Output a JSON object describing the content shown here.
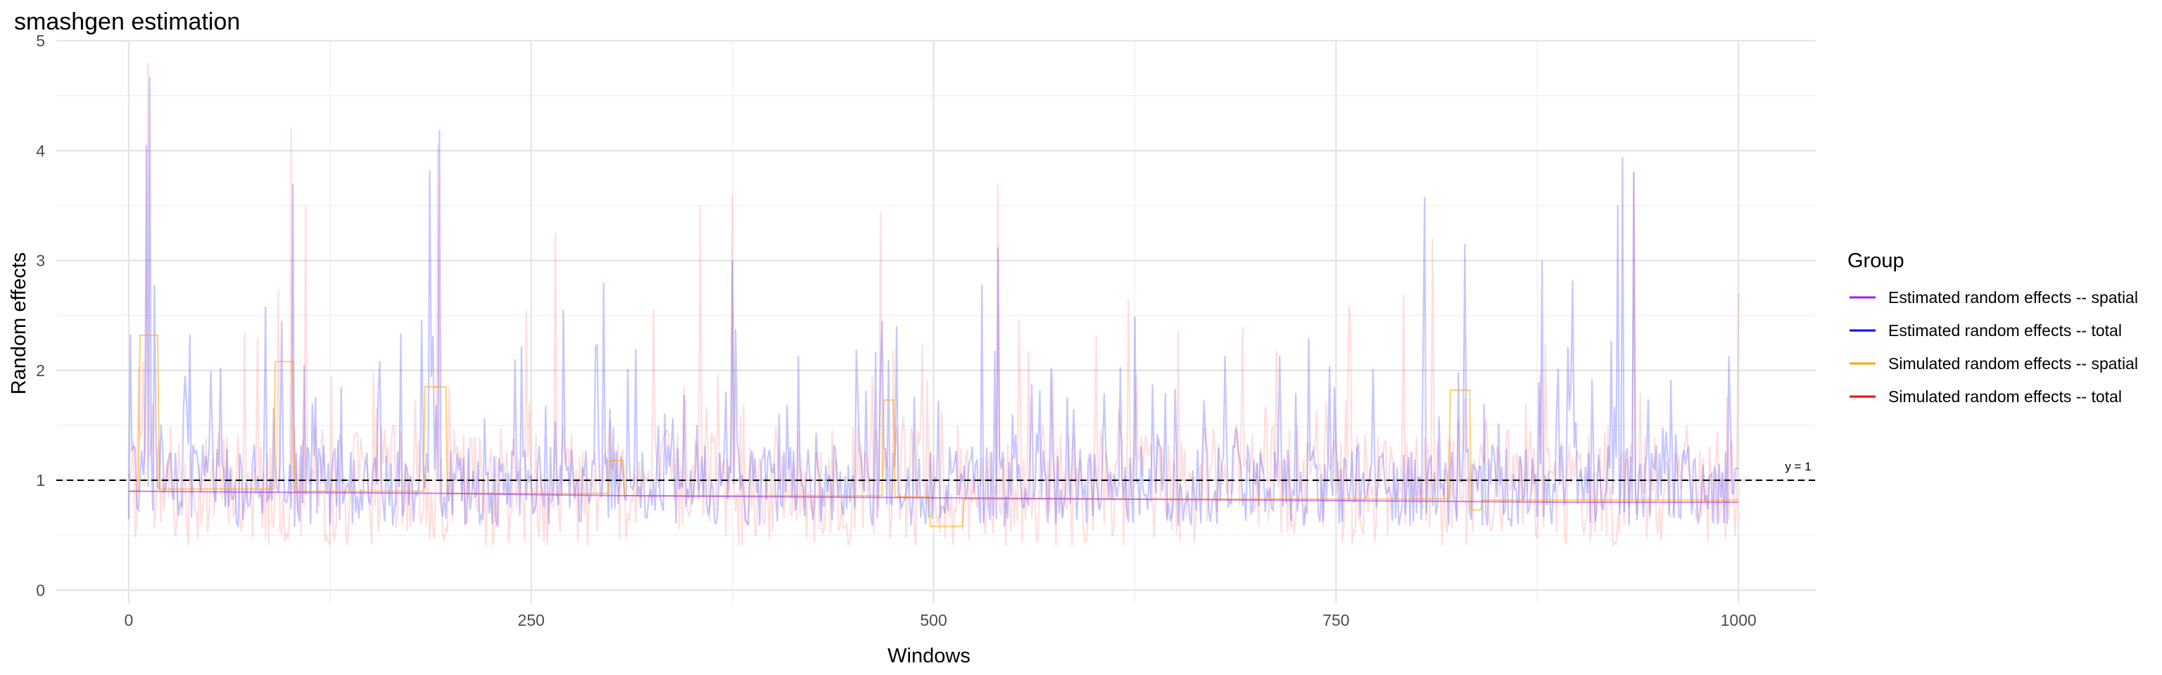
{
  "chart_data": {
    "type": "line",
    "title": "smashgen estimation",
    "xlabel": "Windows",
    "ylabel": "Random effects",
    "xlim": [
      -45,
      1048
    ],
    "ylim": [
      -0.12,
      5.0
    ],
    "x_ticks": [
      0,
      250,
      500,
      750,
      1000
    ],
    "x_tick_labels": [
      "0",
      "250",
      "500",
      "750",
      "1000"
    ],
    "y_ticks": [
      0,
      1,
      2,
      3,
      4,
      5
    ],
    "y_tick_labels": [
      "0",
      "1",
      "2",
      "3",
      "4",
      "5"
    ],
    "grid": true,
    "legend": {
      "title": "Group",
      "position": "right",
      "entries": [
        {
          "label": "Estimated random effects -- spatial",
          "color": "#a020f0"
        },
        {
          "label": "Estimated random effects -- total",
          "color": "#0000ff"
        },
        {
          "label": "Simulated random effects -- spatial",
          "color": "#ffa500"
        },
        {
          "label": "Simulated random effects -- total",
          "color": "#ff0000"
        }
      ]
    },
    "reference_line": {
      "y": 1,
      "label": "y = 1",
      "style": "dashed",
      "color": "#000000"
    },
    "series": [
      {
        "name": "Estimated random effects -- spatial",
        "color": "#a020f0",
        "x": [
          0,
          100,
          200,
          300,
          400,
          500,
          600,
          700,
          800,
          900,
          1000
        ],
        "y": [
          0.9,
          0.89,
          0.88,
          0.86,
          0.85,
          0.84,
          0.83,
          0.82,
          0.81,
          0.8,
          0.8
        ]
      },
      {
        "name": "Simulated random effects -- spatial",
        "color": "#ffa500",
        "x": [
          0,
          6,
          7,
          18,
          19,
          90,
          91,
          102,
          103,
          183,
          184,
          197,
          198,
          298,
          299,
          307,
          308,
          468,
          469,
          475,
          476,
          497,
          498,
          518,
          519,
          820,
          821,
          833,
          834,
          840,
          841,
          1000
        ],
        "y": [
          0.9,
          0.9,
          2.32,
          2.32,
          0.92,
          0.92,
          2.08,
          2.08,
          0.9,
          0.9,
          1.85,
          1.85,
          0.88,
          0.88,
          1.18,
          1.18,
          0.86,
          0.86,
          1.73,
          1.73,
          0.85,
          0.85,
          0.58,
          0.58,
          0.83,
          0.83,
          1.82,
          1.82,
          0.73,
          0.73,
          0.82,
          0.82
        ]
      },
      {
        "name": "Estimated random effects -- total",
        "color": "#0000ff",
        "peaks": [
          {
            "x": 11,
            "y": 4.05
          },
          {
            "x": 13,
            "y": 4.67
          },
          {
            "x": 16,
            "y": 2.78
          },
          {
            "x": 35,
            "y": 1.95
          },
          {
            "x": 85,
            "y": 2.58
          },
          {
            "x": 95,
            "y": 2.45
          },
          {
            "x": 102,
            "y": 3.7
          },
          {
            "x": 187,
            "y": 3.82
          },
          {
            "x": 193,
            "y": 4.19
          },
          {
            "x": 240,
            "y": 2.1
          },
          {
            "x": 270,
            "y": 2.55
          },
          {
            "x": 295,
            "y": 2.8
          },
          {
            "x": 375,
            "y": 3.0
          },
          {
            "x": 468,
            "y": 2.45
          },
          {
            "x": 530,
            "y": 2.78
          },
          {
            "x": 540,
            "y": 3.12
          },
          {
            "x": 805,
            "y": 3.58
          },
          {
            "x": 830,
            "y": 3.15
          },
          {
            "x": 878,
            "y": 3.0
          },
          {
            "x": 897,
            "y": 2.82
          },
          {
            "x": 925,
            "y": 3.5
          },
          {
            "x": 928,
            "y": 3.94
          },
          {
            "x": 935,
            "y": 3.81
          },
          {
            "x": 995,
            "y": 1.55
          }
        ]
      },
      {
        "name": "Simulated random effects -- total",
        "color": "#ff0000",
        "peaks": [
          {
            "x": 12,
            "y": 4.8
          },
          {
            "x": 101,
            "y": 4.2
          },
          {
            "x": 110,
            "y": 3.5
          },
          {
            "x": 192,
            "y": 4.05
          },
          {
            "x": 265,
            "y": 3.25
          },
          {
            "x": 355,
            "y": 3.5
          },
          {
            "x": 375,
            "y": 3.6
          },
          {
            "x": 467,
            "y": 3.45
          },
          {
            "x": 540,
            "y": 3.7
          },
          {
            "x": 810,
            "y": 3.2
          },
          {
            "x": 935,
            "y": 3.8
          },
          {
            "x": 1000,
            "y": 2.7
          }
        ]
      }
    ]
  }
}
